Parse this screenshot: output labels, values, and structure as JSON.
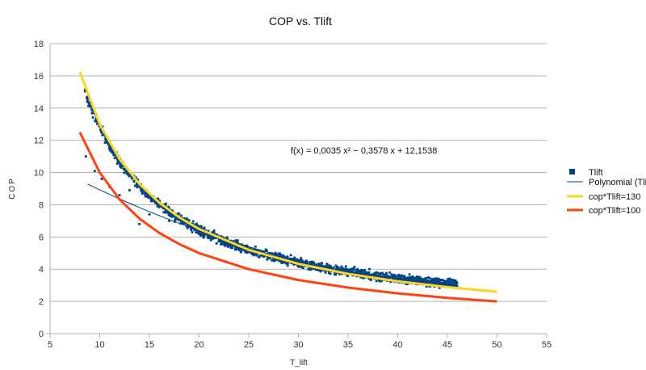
{
  "chart_data": {
    "type": "scatter",
    "title": "COP vs. Tlift",
    "xlabel": "T_lift",
    "ylabel": "COP",
    "xlim": [
      5,
      55
    ],
    "ylim": [
      0,
      18
    ],
    "xticks": [
      5,
      10,
      15,
      20,
      25,
      30,
      35,
      40,
      45,
      50,
      55
    ],
    "yticks": [
      0,
      2,
      4,
      6,
      8,
      10,
      12,
      14,
      16,
      18
    ],
    "grid": "horizontal",
    "legend_position": "right",
    "trendline_equation": "f(x) = 0,0035 x² − 0,3578 x + 12,1538",
    "series": [
      {
        "name": "Tlift",
        "kind": "scatter",
        "color": "#004586",
        "marker": "square",
        "x_range": [
          8.5,
          46
        ],
        "count": 1800,
        "trend_model": "130 / x",
        "spread": 0.25,
        "sample_points": [
          {
            "x": 8.6,
            "y": 11.0
          },
          {
            "x": 9.5,
            "y": 10.1
          },
          {
            "x": 10.2,
            "y": 9.6
          },
          {
            "x": 11.0,
            "y": 9.1
          },
          {
            "x": 12.0,
            "y": 8.6
          },
          {
            "x": 13.0,
            "y": 8.9
          },
          {
            "x": 14.0,
            "y": 6.8
          },
          {
            "x": 15.0,
            "y": 7.4
          },
          {
            "x": 17.0,
            "y": 7.0
          },
          {
            "x": 20.0,
            "y": 6.2
          },
          {
            "x": 25.0,
            "y": 5.2
          },
          {
            "x": 30.0,
            "y": 4.4
          },
          {
            "x": 35.0,
            "y": 3.8
          },
          {
            "x": 40.0,
            "y": 3.3
          },
          {
            "x": 44.0,
            "y": 3.0
          }
        ]
      },
      {
        "name": "Polynomial (Tlift",
        "kind": "line",
        "color": "#004586",
        "coefficients": [
          12.1538,
          -0.3578,
          0.0035
        ],
        "x_range": [
          8.8,
          46
        ]
      },
      {
        "name": "cop*Tlift=130",
        "kind": "line",
        "color": "#ffd320",
        "x": [
          8,
          10,
          12,
          14,
          16,
          18,
          20,
          25,
          30,
          35,
          40,
          45,
          50
        ],
        "y": [
          16.25,
          13.0,
          10.83,
          9.29,
          8.13,
          7.22,
          6.5,
          5.2,
          4.33,
          3.71,
          3.25,
          2.89,
          2.6
        ]
      },
      {
        "name": "cop*Tlift=100",
        "kind": "line",
        "color": "#ff420e",
        "x": [
          8,
          10,
          12,
          14,
          16,
          18,
          20,
          25,
          30,
          35,
          40,
          45,
          50
        ],
        "y": [
          12.5,
          10.0,
          8.33,
          7.14,
          6.25,
          5.56,
          5.0,
          4.0,
          3.33,
          2.86,
          2.5,
          2.22,
          2.0
        ]
      }
    ]
  }
}
